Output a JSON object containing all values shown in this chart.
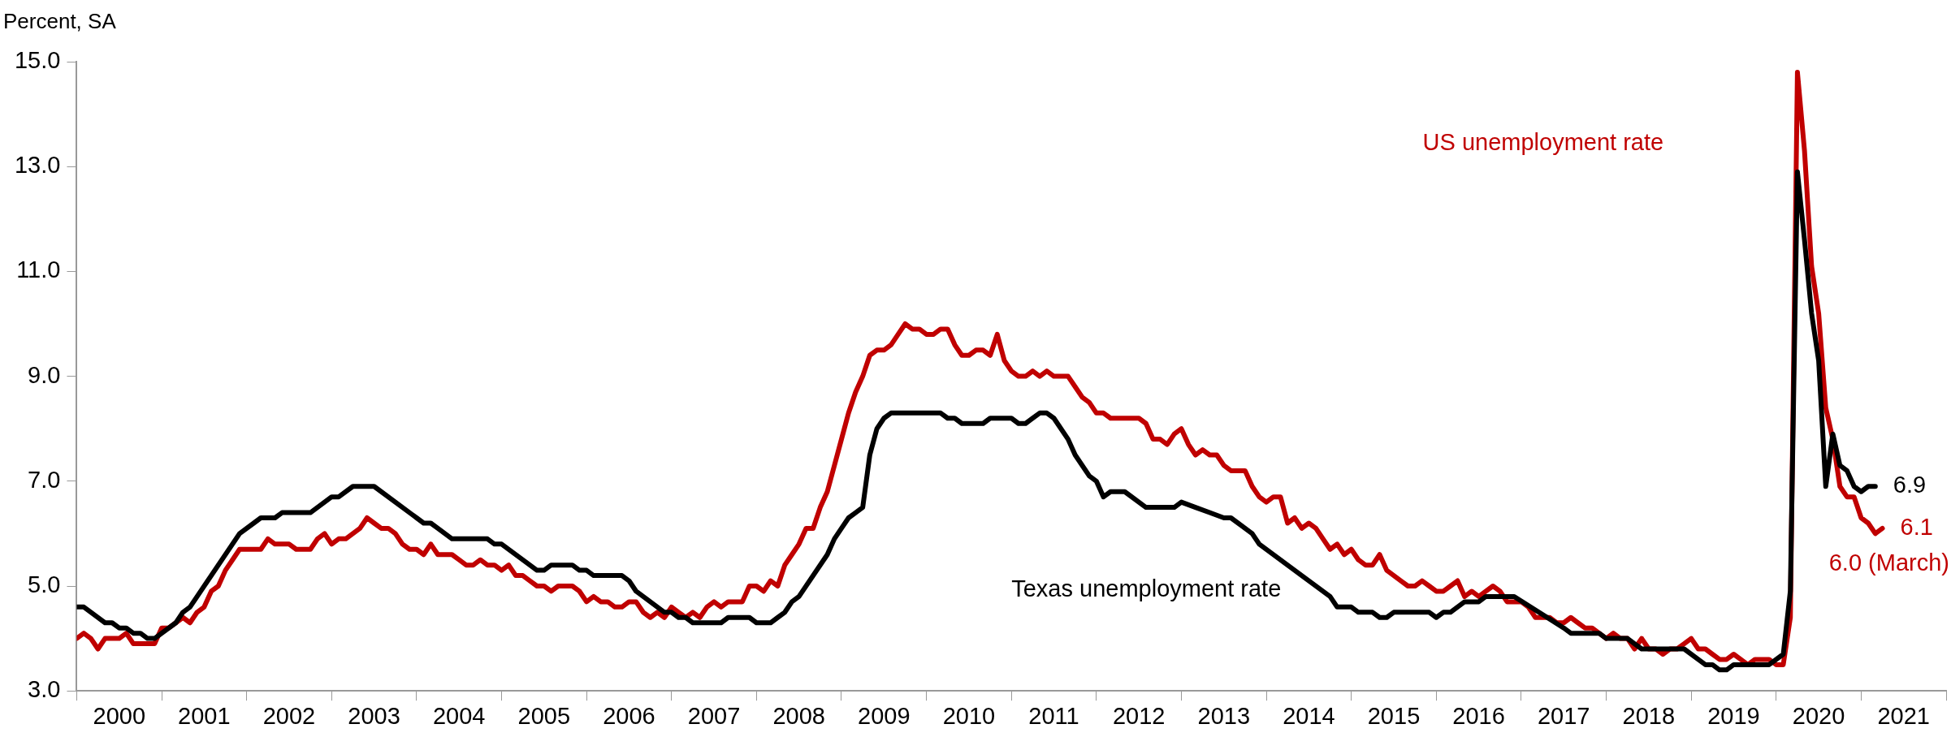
{
  "chart_data": {
    "type": "line",
    "ylabel": "Percent, SA",
    "xlim": [
      "2000-01",
      "2022-01"
    ],
    "ylim": [
      3,
      15
    ],
    "yticks": [
      {
        "value": 3,
        "label": "3.0"
      },
      {
        "value": 5,
        "label": "5.0"
      },
      {
        "value": 7,
        "label": "7.0"
      },
      {
        "value": 9,
        "label": "9.0"
      },
      {
        "value": 11,
        "label": "11.0"
      },
      {
        "value": 13,
        "label": "13.0"
      },
      {
        "value": 15,
        "label": "15.0"
      }
    ],
    "xticks": [
      {
        "value": "2000-01",
        "label": null
      },
      {
        "value": "2000-07",
        "label": "2000"
      },
      {
        "value": "2001-01",
        "label": null
      },
      {
        "value": "2001-07",
        "label": "2001"
      },
      {
        "value": "2002-01",
        "label": null
      },
      {
        "value": "2002-07",
        "label": "2002"
      },
      {
        "value": "2003-01",
        "label": null
      },
      {
        "value": "2003-07",
        "label": "2003"
      },
      {
        "value": "2004-01",
        "label": null
      },
      {
        "value": "2004-07",
        "label": "2004"
      },
      {
        "value": "2005-01",
        "label": null
      },
      {
        "value": "2005-07",
        "label": "2005"
      },
      {
        "value": "2006-01",
        "label": null
      },
      {
        "value": "2006-07",
        "label": "2006"
      },
      {
        "value": "2007-01",
        "label": null
      },
      {
        "value": "2007-07",
        "label": "2007"
      },
      {
        "value": "2008-01",
        "label": null
      },
      {
        "value": "2008-07",
        "label": "2008"
      },
      {
        "value": "2009-01",
        "label": null
      },
      {
        "value": "2009-07",
        "label": "2009"
      },
      {
        "value": "2010-01",
        "label": null
      },
      {
        "value": "2010-07",
        "label": "2010"
      },
      {
        "value": "2011-01",
        "label": null
      },
      {
        "value": "2011-07",
        "label": "2011"
      },
      {
        "value": "2012-01",
        "label": null
      },
      {
        "value": "2012-07",
        "label": "2012"
      },
      {
        "value": "2013-01",
        "label": null
      },
      {
        "value": "2013-07",
        "label": "2013"
      },
      {
        "value": "2014-01",
        "label": null
      },
      {
        "value": "2014-07",
        "label": "2014"
      },
      {
        "value": "2015-01",
        "label": null
      },
      {
        "value": "2015-07",
        "label": "2015"
      },
      {
        "value": "2016-01",
        "label": null
      },
      {
        "value": "2016-07",
        "label": "2016"
      },
      {
        "value": "2017-01",
        "label": null
      },
      {
        "value": "2017-07",
        "label": "2017"
      },
      {
        "value": "2018-01",
        "label": null
      },
      {
        "value": "2018-07",
        "label": "2018"
      },
      {
        "value": "2019-01",
        "label": null
      },
      {
        "value": "2019-07",
        "label": "2019"
      },
      {
        "value": "2020-01",
        "label": null
      },
      {
        "value": "2020-07",
        "label": "2020"
      },
      {
        "value": "2021-01",
        "label": null
      },
      {
        "value": "2021-07",
        "label": "2021"
      },
      {
        "value": "2022-01",
        "label": null
      }
    ],
    "grid": false,
    "legend": false,
    "marker": "none",
    "line_style": "solid",
    "series": [
      {
        "name": "US unemployment rate",
        "color": "#c00000",
        "x": [
          "2000-01",
          "2000-02",
          "2000-03",
          "2000-04",
          "2000-05",
          "2000-06",
          "2000-07",
          "2000-08",
          "2000-09",
          "2000-10",
          "2000-11",
          "2000-12",
          "2001-01",
          "2001-02",
          "2001-03",
          "2001-04",
          "2001-05",
          "2001-06",
          "2001-07",
          "2001-08",
          "2001-09",
          "2001-10",
          "2001-11",
          "2001-12",
          "2002-01",
          "2002-02",
          "2002-03",
          "2002-04",
          "2002-05",
          "2002-06",
          "2002-07",
          "2002-08",
          "2002-09",
          "2002-10",
          "2002-11",
          "2002-12",
          "2003-01",
          "2003-02",
          "2003-03",
          "2003-04",
          "2003-05",
          "2003-06",
          "2003-07",
          "2003-08",
          "2003-09",
          "2003-10",
          "2003-11",
          "2003-12",
          "2004-01",
          "2004-02",
          "2004-03",
          "2004-04",
          "2004-05",
          "2004-06",
          "2004-07",
          "2004-08",
          "2004-09",
          "2004-10",
          "2004-11",
          "2004-12",
          "2005-01",
          "2005-02",
          "2005-03",
          "2005-04",
          "2005-05",
          "2005-06",
          "2005-07",
          "2005-08",
          "2005-09",
          "2005-10",
          "2005-11",
          "2005-12",
          "2006-01",
          "2006-02",
          "2006-03",
          "2006-04",
          "2006-05",
          "2006-06",
          "2006-07",
          "2006-08",
          "2006-09",
          "2006-10",
          "2006-11",
          "2006-12",
          "2007-01",
          "2007-02",
          "2007-03",
          "2007-04",
          "2007-05",
          "2007-06",
          "2007-07",
          "2007-08",
          "2007-09",
          "2007-10",
          "2007-11",
          "2007-12",
          "2008-01",
          "2008-02",
          "2008-03",
          "2008-04",
          "2008-05",
          "2008-06",
          "2008-07",
          "2008-08",
          "2008-09",
          "2008-10",
          "2008-11",
          "2008-12",
          "2009-01",
          "2009-02",
          "2009-03",
          "2009-04",
          "2009-05",
          "2009-06",
          "2009-07",
          "2009-08",
          "2009-09",
          "2009-10",
          "2009-11",
          "2009-12",
          "2010-01",
          "2010-02",
          "2010-03",
          "2010-04",
          "2010-05",
          "2010-06",
          "2010-07",
          "2010-08",
          "2010-09",
          "2010-10",
          "2010-11",
          "2010-12",
          "2011-01",
          "2011-02",
          "2011-03",
          "2011-04",
          "2011-05",
          "2011-06",
          "2011-07",
          "2011-08",
          "2011-09",
          "2011-10",
          "2011-11",
          "2011-12",
          "2012-01",
          "2012-02",
          "2012-03",
          "2012-04",
          "2012-05",
          "2012-06",
          "2012-07",
          "2012-08",
          "2012-09",
          "2012-10",
          "2012-11",
          "2012-12",
          "2013-01",
          "2013-02",
          "2013-03",
          "2013-04",
          "2013-05",
          "2013-06",
          "2013-07",
          "2013-08",
          "2013-09",
          "2013-10",
          "2013-11",
          "2013-12",
          "2014-01",
          "2014-02",
          "2014-03",
          "2014-04",
          "2014-05",
          "2014-06",
          "2014-07",
          "2014-08",
          "2014-09",
          "2014-10",
          "2014-11",
          "2014-12",
          "2015-01",
          "2015-02",
          "2015-03",
          "2015-04",
          "2015-05",
          "2015-06",
          "2015-07",
          "2015-08",
          "2015-09",
          "2015-10",
          "2015-11",
          "2015-12",
          "2016-01",
          "2016-02",
          "2016-03",
          "2016-04",
          "2016-05",
          "2016-06",
          "2016-07",
          "2016-08",
          "2016-09",
          "2016-10",
          "2016-11",
          "2016-12",
          "2017-01",
          "2017-02",
          "2017-03",
          "2017-04",
          "2017-05",
          "2017-06",
          "2017-07",
          "2017-08",
          "2017-09",
          "2017-10",
          "2017-11",
          "2017-12",
          "2018-01",
          "2018-02",
          "2018-03",
          "2018-04",
          "2018-05",
          "2018-06",
          "2018-07",
          "2018-08",
          "2018-09",
          "2018-10",
          "2018-11",
          "2018-12",
          "2019-01",
          "2019-02",
          "2019-03",
          "2019-04",
          "2019-05",
          "2019-06",
          "2019-07",
          "2019-08",
          "2019-09",
          "2019-10",
          "2019-11",
          "2019-12",
          "2020-01",
          "2020-02",
          "2020-03",
          "2020-04",
          "2020-05",
          "2020-06",
          "2020-07",
          "2020-08",
          "2020-09",
          "2020-10",
          "2020-11",
          "2020-12",
          "2021-01",
          "2021-02",
          "2021-03",
          "2021-04"
        ],
        "values": [
          4.0,
          4.1,
          4.0,
          3.8,
          4.0,
          4.0,
          4.0,
          4.1,
          3.9,
          3.9,
          3.9,
          3.9,
          4.2,
          4.2,
          4.3,
          4.4,
          4.3,
          4.5,
          4.6,
          4.9,
          5.0,
          5.3,
          5.5,
          5.7,
          5.7,
          5.7,
          5.7,
          5.9,
          5.8,
          5.8,
          5.8,
          5.7,
          5.7,
          5.7,
          5.9,
          6.0,
          5.8,
          5.9,
          5.9,
          6.0,
          6.1,
          6.3,
          6.2,
          6.1,
          6.1,
          6.0,
          5.8,
          5.7,
          5.7,
          5.6,
          5.8,
          5.6,
          5.6,
          5.6,
          5.5,
          5.4,
          5.4,
          5.5,
          5.4,
          5.4,
          5.3,
          5.4,
          5.2,
          5.2,
          5.1,
          5.0,
          5.0,
          4.9,
          5.0,
          5.0,
          5.0,
          4.9,
          4.7,
          4.8,
          4.7,
          4.7,
          4.6,
          4.6,
          4.7,
          4.7,
          4.5,
          4.4,
          4.5,
          4.4,
          4.6,
          4.5,
          4.4,
          4.5,
          4.4,
          4.6,
          4.7,
          4.6,
          4.7,
          4.7,
          4.7,
          5.0,
          5.0,
          4.9,
          5.1,
          5.0,
          5.4,
          5.6,
          5.8,
          6.1,
          6.1,
          6.5,
          6.8,
          7.3,
          7.8,
          8.3,
          8.7,
          9.0,
          9.4,
          9.5,
          9.5,
          9.6,
          9.8,
          10.0,
          9.9,
          9.9,
          9.8,
          9.8,
          9.9,
          9.9,
          9.6,
          9.4,
          9.4,
          9.5,
          9.5,
          9.4,
          9.8,
          9.3,
          9.1,
          9.0,
          9.0,
          9.1,
          9.0,
          9.1,
          9.0,
          9.0,
          9.0,
          8.8,
          8.6,
          8.5,
          8.3,
          8.3,
          8.2,
          8.2,
          8.2,
          8.2,
          8.2,
          8.1,
          7.8,
          7.8,
          7.7,
          7.9,
          8.0,
          7.7,
          7.5,
          7.6,
          7.5,
          7.5,
          7.3,
          7.2,
          7.2,
          7.2,
          6.9,
          6.7,
          6.6,
          6.7,
          6.7,
          6.2,
          6.3,
          6.1,
          6.2,
          6.1,
          5.9,
          5.7,
          5.8,
          5.6,
          5.7,
          5.5,
          5.4,
          5.4,
          5.6,
          5.3,
          5.2,
          5.1,
          5.0,
          5.0,
          5.1,
          5.0,
          4.9,
          4.9,
          5.0,
          5.1,
          4.8,
          4.9,
          4.8,
          4.9,
          5.0,
          4.9,
          4.7,
          4.7,
          4.7,
          4.6,
          4.4,
          4.4,
          4.4,
          4.3,
          4.3,
          4.4,
          4.3,
          4.2,
          4.2,
          4.1,
          4.0,
          4.1,
          4.0,
          4.0,
          3.8,
          4.0,
          3.8,
          3.8,
          3.7,
          3.8,
          3.8,
          3.9,
          4.0,
          3.8,
          3.8,
          3.7,
          3.6,
          3.6,
          3.7,
          3.6,
          3.5,
          3.6,
          3.6,
          3.6,
          3.5,
          3.5,
          4.4,
          14.8,
          13.3,
          11.1,
          10.2,
          8.4,
          7.8,
          6.9,
          6.7,
          6.7,
          6.3,
          6.2,
          6.0,
          6.1
        ]
      },
      {
        "name": "Texas unemployment rate",
        "color": "#000000",
        "x": [
          "2000-01",
          "2000-02",
          "2000-05",
          "2000-06",
          "2000-07",
          "2000-08",
          "2000-09",
          "2000-10",
          "2000-11",
          "2000-12",
          "2001-03",
          "2001-04",
          "2001-05",
          "2001-12",
          "2002-02",
          "2002-03",
          "2002-05",
          "2002-06",
          "2002-10",
          "2003-01",
          "2003-02",
          "2003-04",
          "2003-07",
          "2004-01",
          "2004-02",
          "2004-03",
          "2004-04",
          "2004-06",
          "2004-11",
          "2004-12",
          "2005-01",
          "2005-06",
          "2005-07",
          "2005-08",
          "2005-11",
          "2005-12",
          "2006-01",
          "2006-02",
          "2006-06",
          "2006-07",
          "2006-08",
          "2006-12",
          "2007-01",
          "2007-02",
          "2007-03",
          "2007-04",
          "2007-08",
          "2007-09",
          "2007-12",
          "2008-01",
          "2008-03",
          "2008-04",
          "2008-05",
          "2008-06",
          "2008-07",
          "2008-11",
          "2008-12",
          "2009-01",
          "2009-02",
          "2009-03",
          "2009-04",
          "2009-05",
          "2009-06",
          "2009-07",
          "2009-08",
          "2010-03",
          "2010-04",
          "2010-05",
          "2010-06",
          "2010-09",
          "2010-10",
          "2011-01",
          "2011-02",
          "2011-03",
          "2011-05",
          "2011-06",
          "2011-07",
          "2011-09",
          "2011-10",
          "2011-12",
          "2012-01",
          "2012-02",
          "2012-03",
          "2012-05",
          "2012-08",
          "2012-12",
          "2013-01",
          "2013-03",
          "2013-05",
          "2013-07",
          "2013-08",
          "2013-11",
          "2013-12",
          "2014-06",
          "2014-10",
          "2014-11",
          "2015-01",
          "2015-02",
          "2015-04",
          "2015-05",
          "2015-06",
          "2015-07",
          "2015-12",
          "2016-01",
          "2016-02",
          "2016-03",
          "2016-05",
          "2016-07",
          "2016-08",
          "2016-12",
          "2017-07",
          "2017-08",
          "2017-12",
          "2018-01",
          "2018-04",
          "2018-05",
          "2018-06",
          "2018-12",
          "2019-03",
          "2019-04",
          "2019-05",
          "2019-06",
          "2019-07",
          "2019-12",
          "2020-02",
          "2020-03",
          "2020-04",
          "2020-05",
          "2020-06",
          "2020-07",
          "2020-08",
          "2020-09",
          "2020-10",
          "2020-11",
          "2020-12",
          "2021-01",
          "2021-02",
          "2021-03"
        ],
        "values": [
          4.6,
          4.6,
          4.3,
          4.3,
          4.2,
          4.2,
          4.1,
          4.1,
          4.0,
          4.0,
          4.3,
          4.5,
          4.6,
          6.0,
          6.2,
          6.3,
          6.3,
          6.4,
          6.4,
          6.7,
          6.7,
          6.9,
          6.9,
          6.3,
          6.2,
          6.2,
          6.1,
          5.9,
          5.9,
          5.8,
          5.8,
          5.3,
          5.3,
          5.4,
          5.4,
          5.3,
          5.3,
          5.2,
          5.2,
          5.1,
          4.9,
          4.5,
          4.5,
          4.4,
          4.4,
          4.3,
          4.3,
          4.4,
          4.4,
          4.3,
          4.3,
          4.4,
          4.5,
          4.7,
          4.8,
          5.6,
          5.9,
          6.1,
          6.3,
          6.4,
          6.5,
          7.5,
          8.0,
          8.2,
          8.3,
          8.3,
          8.2,
          8.2,
          8.1,
          8.1,
          8.2,
          8.2,
          8.1,
          8.1,
          8.3,
          8.3,
          8.2,
          7.8,
          7.5,
          7.1,
          7.0,
          6.7,
          6.8,
          6.8,
          6.5,
          6.5,
          6.6,
          6.5,
          6.4,
          6.3,
          6.3,
          6.0,
          5.8,
          5.2,
          4.8,
          4.6,
          4.6,
          4.5,
          4.5,
          4.4,
          4.4,
          4.5,
          4.5,
          4.4,
          4.5,
          4.5,
          4.7,
          4.7,
          4.8,
          4.8,
          4.2,
          4.1,
          4.1,
          4.0,
          4.0,
          3.9,
          3.8,
          3.8,
          3.5,
          3.5,
          3.4,
          3.4,
          3.5,
          3.5,
          3.7,
          4.9,
          12.9,
          11.6,
          10.2,
          9.3,
          6.9,
          7.9,
          7.3,
          7.2,
          6.9,
          6.8,
          6.9,
          6.9
        ]
      }
    ],
    "annotations": [
      {
        "text": "6.9",
        "x": "2021-03",
        "y": 6.9
      },
      {
        "text": "6.1",
        "x": "2021-04",
        "y": 6.1
      },
      {
        "text": "6.0 (March)",
        "x": "2021-03",
        "y": 6.0
      }
    ]
  }
}
